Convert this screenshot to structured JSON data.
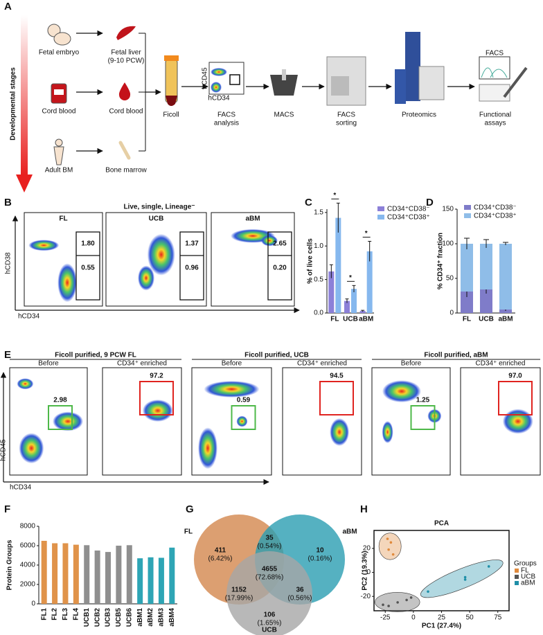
{
  "panel_labels": [
    "A",
    "B",
    "C",
    "D",
    "E",
    "F",
    "G",
    "H"
  ],
  "panel_a": {
    "stage_axis": "Developmental stages",
    "sources": [
      {
        "source": "Fetal embryo",
        "tissue": [
          "Fetal liver",
          "(9-10 PCW)"
        ]
      },
      {
        "source": "Cord blood",
        "tissue": [
          "Cord blood"
        ]
      },
      {
        "source": "Adult BM",
        "tissue": [
          "Bone marrow"
        ]
      }
    ],
    "steps": [
      [
        "Ficoll"
      ],
      [
        "FACS",
        "analysis"
      ],
      [
        "MACS"
      ],
      [
        "FACS",
        "sorting"
      ],
      [
        "Proteomics"
      ],
      [
        "Functional",
        "assays"
      ]
    ],
    "icon_x_axis": "hCD34",
    "icon_y_axis": "hCD45",
    "assay_icon_title": "FACS"
  },
  "panel_b": {
    "title": "Live, single, Lineage⁻",
    "x_axis": "hCD34",
    "y_axis": "hCD38",
    "plots": [
      {
        "name": "FL",
        "upper": "1.80",
        "lower": "0.55"
      },
      {
        "name": "UCB",
        "upper": "1.37",
        "lower": "0.96"
      },
      {
        "name": "aBM",
        "upper": "2.65",
        "lower": "0.20"
      }
    ]
  },
  "panel_e": {
    "x_axis": "hCD34",
    "y_axis": "hCD45",
    "groups": [
      {
        "title": "Ficoll purified, 9 PCW FL",
        "before": "Before",
        "after": "CD34⁺ enriched",
        "before_gate": "2.98",
        "after_gate": "97.2"
      },
      {
        "title": "Ficoll purified, UCB",
        "before": "Before",
        "after": "CD34⁺ enriched",
        "before_gate": "0.59",
        "after_gate": "94.5"
      },
      {
        "title": "Ficoll purified, aBM",
        "before": "Before",
        "after": "CD34⁺ enriched",
        "before_gate": "1.25",
        "after_gate": "97.0"
      }
    ]
  },
  "chart_data": [
    {
      "type": "bar",
      "ylabel": "% of live cells",
      "categories": [
        "FL",
        "UCB",
        "aBM"
      ],
      "series": [
        {
          "name": "CD34⁺CD38⁻",
          "color": "#8c80d8",
          "values": [
            0.62,
            0.18,
            0.03
          ],
          "errors": [
            0.1,
            0.03,
            0.01
          ]
        },
        {
          "name": "CD34⁺CD38⁺",
          "color": "#86b8ee",
          "values": [
            1.42,
            0.36,
            0.92
          ],
          "errors": [
            0.22,
            0.05,
            0.15
          ]
        }
      ],
      "annotations": [
        "*",
        "*",
        "*"
      ],
      "ylim": [
        0,
        1.55
      ],
      "yticks": [
        {
          "value": 0,
          "label": "0.0"
        },
        {
          "value": 0.5,
          "label": "0.5"
        },
        {
          "value": 1,
          "label": "1.0"
        },
        {
          "value": 1.5,
          "label": "1.5"
        }
      ]
    },
    {
      "type": "stacked_bar",
      "ylabel": "% CD34⁺ fraction",
      "categories": [
        "FL",
        "UCB",
        "aBM"
      ],
      "series": [
        {
          "name": "CD34⁺CD38⁻",
          "color": "#7f7cc9",
          "values": [
            31,
            34,
            5
          ],
          "errors": [
            8,
            6,
            2
          ]
        },
        {
          "name": "CD34⁺CD38⁺",
          "color": "#8fbde8",
          "values": [
            69,
            66,
            95
          ],
          "errors": [
            8,
            6,
            2
          ]
        }
      ],
      "ylim": [
        0,
        150
      ],
      "yticks": [
        0,
        50,
        100,
        150
      ]
    },
    {
      "type": "bar",
      "ylabel": "Protein  Groups",
      "categories": [
        "FL1",
        "FL2",
        "FL3",
        "FL4",
        "UCB1",
        "UCB2",
        "UCB3",
        "UCB5",
        "UCB6",
        "aBM1",
        "aBM2",
        "aBM3",
        "aBM4"
      ],
      "values": [
        6500,
        6250,
        6250,
        6100,
        6050,
        5500,
        5350,
        6000,
        6050,
        4700,
        4800,
        4750,
        5800
      ],
      "colors": [
        "#e0934a",
        "#e0934a",
        "#e0934a",
        "#e0934a",
        "#8f8f8f",
        "#8f8f8f",
        "#8f8f8f",
        "#8f8f8f",
        "#8f8f8f",
        "#2ea5b5",
        "#2ea5b5",
        "#2ea5b5",
        "#2ea5b5"
      ],
      "ylim": [
        0,
        8000
      ],
      "yticks": [
        0,
        2000,
        4000,
        6000,
        8000
      ]
    },
    {
      "type": "venn",
      "sets": [
        {
          "name": "FL",
          "color": "#d3874d"
        },
        {
          "name": "aBM",
          "color": "#2a9db2"
        },
        {
          "name": "UCB",
          "color": "#a6a6a6"
        }
      ],
      "regions": [
        {
          "count": 411,
          "percent": "(6.42%)"
        },
        {
          "count": 35,
          "percent": "(0.54%)"
        },
        {
          "count": 10,
          "percent": "(0.16%)"
        },
        {
          "count": 4655,
          "percent": "(72.68%)"
        },
        {
          "count": 1152,
          "percent": "(17.99%)"
        },
        {
          "count": 36,
          "percent": "(0.56%)"
        },
        {
          "count": 106,
          "percent": "(1.65%)"
        }
      ]
    },
    {
      "type": "scatter",
      "title": "PCA",
      "xlabel": "PC1 (27.4%)",
      "ylabel": "PC2 (19.3%)",
      "legend_title": "Groups",
      "series": [
        {
          "name": "FL",
          "color": "#e08a3c",
          "x": [
            -23,
            -20,
            -22,
            -18
          ],
          "y": [
            28,
            25,
            19,
            15
          ]
        },
        {
          "name": "UCB",
          "color": "#555555",
          "x": [
            -27,
            -22,
            -14,
            -6,
            -2
          ],
          "y": [
            -27,
            -28,
            -25,
            -23,
            -21
          ]
        },
        {
          "name": "aBM",
          "color": "#1f8fa8",
          "x": [
            13,
            46,
            46,
            67
          ],
          "y": [
            -16,
            -6,
            -4,
            5
          ]
        }
      ],
      "xlim": [
        -35,
        85
      ],
      "ylim": [
        -32,
        35
      ],
      "xticks": [
        -25,
        0,
        25,
        50,
        75
      ],
      "yticks": [
        -20,
        0,
        20
      ]
    }
  ]
}
